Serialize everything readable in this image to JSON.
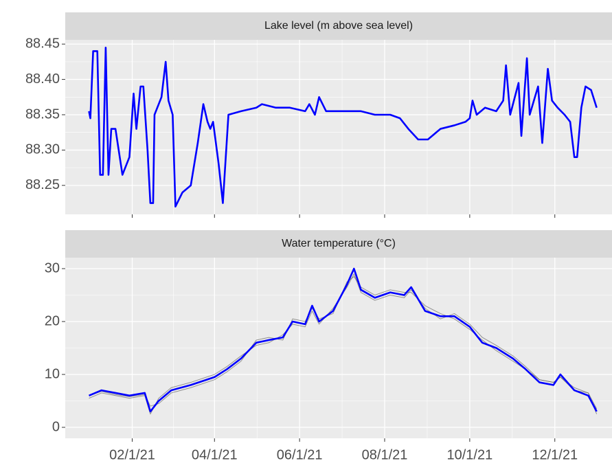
{
  "chart_data": [
    {
      "type": "line",
      "title": "Lake level (m above sea level)",
      "x": [
        "2021-01-01",
        "2021-01-02",
        "2021-01-04",
        "2021-01-07",
        "2021-01-09",
        "2021-01-11",
        "2021-01-13",
        "2021-01-15",
        "2021-01-17",
        "2021-01-20",
        "2021-01-25",
        "2021-01-30",
        "2021-02-02",
        "2021-02-04",
        "2021-02-07",
        "2021-02-09",
        "2021-02-12",
        "2021-02-14",
        "2021-02-16",
        "2021-02-17",
        "2021-02-22",
        "2021-02-25",
        "2021-02-27",
        "2021-03-02",
        "2021-03-04",
        "2021-03-09",
        "2021-03-15",
        "2021-03-20",
        "2021-03-24",
        "2021-03-27",
        "2021-03-29",
        "2021-03-31",
        "2021-04-04",
        "2021-04-07",
        "2021-04-11",
        "2021-04-20",
        "2021-05-01",
        "2021-05-05",
        "2021-05-15",
        "2021-05-25",
        "2021-06-05",
        "2021-06-08",
        "2021-06-12",
        "2021-06-15",
        "2021-06-20",
        "2021-07-01",
        "2021-07-15",
        "2021-07-25",
        "2021-08-05",
        "2021-08-12",
        "2021-08-18",
        "2021-08-25",
        "2021-09-01",
        "2021-09-10",
        "2021-09-20",
        "2021-09-28",
        "2021-10-01",
        "2021-10-03",
        "2021-10-06",
        "2021-10-12",
        "2021-10-20",
        "2021-10-25",
        "2021-10-27",
        "2021-10-30",
        "2021-11-05",
        "2021-11-07",
        "2021-11-11",
        "2021-11-13",
        "2021-11-19",
        "2021-11-22",
        "2021-11-26",
        "2021-11-29",
        "2021-12-03",
        "2021-12-08",
        "2021-12-12",
        "2021-12-15",
        "2021-12-17",
        "2021-12-20",
        "2021-12-23",
        "2021-12-27",
        "2021-12-31"
      ],
      "series": [
        {
          "color": "#0000ff",
          "values": [
            88.355,
            88.345,
            88.44,
            88.44,
            88.265,
            88.265,
            88.445,
            88.265,
            88.33,
            88.33,
            88.265,
            88.29,
            88.38,
            88.33,
            88.39,
            88.39,
            88.3,
            88.225,
            88.225,
            88.35,
            88.375,
            88.425,
            88.37,
            88.35,
            88.22,
            88.24,
            88.25,
            88.31,
            88.365,
            88.34,
            88.33,
            88.34,
            88.28,
            88.225,
            88.35,
            88.355,
            88.36,
            88.365,
            88.36,
            88.36,
            88.355,
            88.365,
            88.35,
            88.375,
            88.355,
            88.355,
            88.355,
            88.35,
            88.35,
            88.345,
            88.33,
            88.315,
            88.315,
            88.33,
            88.335,
            88.34,
            88.345,
            88.37,
            88.35,
            88.36,
            88.355,
            88.37,
            88.42,
            88.35,
            88.395,
            88.32,
            88.43,
            88.35,
            88.39,
            88.31,
            88.415,
            88.37,
            88.36,
            88.35,
            88.34,
            88.29,
            88.29,
            88.36,
            88.39,
            88.385,
            88.36
          ]
        }
      ],
      "xlim": [
        "2020-12-15",
        "2022-01-11"
      ],
      "xticks": [
        "2021-02-01",
        "2021-04-01",
        "2021-06-01",
        "2021-08-01",
        "2021-10-01",
        "2021-12-01"
      ],
      "ylim": [
        88.209,
        88.456
      ],
      "yticks": [
        {
          "value": 88.25,
          "label": "88.25"
        },
        {
          "value": 88.3,
          "label": "88.30"
        },
        {
          "value": 88.35,
          "label": "88.35"
        },
        {
          "value": 88.4,
          "label": "88.40"
        },
        {
          "value": 88.45,
          "label": "88.45"
        }
      ],
      "grid": true
    },
    {
      "type": "line",
      "title": "Water temperature (°C)",
      "x": [
        "2021-01-01",
        "2021-01-10",
        "2021-01-20",
        "2021-01-30",
        "2021-02-10",
        "2021-02-14",
        "2021-02-20",
        "2021-03-01",
        "2021-03-15",
        "2021-04-01",
        "2021-04-10",
        "2021-04-20",
        "2021-05-01",
        "2021-05-10",
        "2021-05-20",
        "2021-05-27",
        "2021-06-05",
        "2021-06-10",
        "2021-06-15",
        "2021-06-25",
        "2021-07-05",
        "2021-07-10",
        "2021-07-15",
        "2021-07-25",
        "2021-08-05",
        "2021-08-15",
        "2021-08-20",
        "2021-08-30",
        "2021-09-10",
        "2021-09-20",
        "2021-10-01",
        "2021-10-10",
        "2021-10-20",
        "2021-11-01",
        "2021-11-10",
        "2021-11-20",
        "2021-11-30",
        "2021-12-05",
        "2021-12-15",
        "2021-12-25",
        "2021-12-31"
      ],
      "series": [
        {
          "color": "#555555",
          "values": [
            5.5,
            6.5,
            6,
            5.5,
            6,
            2.5,
            5.5,
            7.5,
            8.5,
            10,
            11.5,
            13.5,
            15.5,
            16,
            17.5,
            19.5,
            19,
            22,
            19.5,
            22.5,
            26.5,
            29,
            25.5,
            24,
            25,
            24.5,
            26,
            22.5,
            20.5,
            21.5,
            19.5,
            17,
            15.5,
            13.5,
            11.5,
            9,
            8.5,
            9.5,
            7.5,
            6.5,
            2.5
          ]
        },
        {
          "color": "#555555",
          "values": [
            6,
            6.8,
            6.2,
            5.8,
            6.2,
            4,
            4.5,
            6.5,
            7.5,
            9,
            10.5,
            12.5,
            16.5,
            17,
            16.5,
            20.5,
            20,
            22.5,
            20.5,
            21.5,
            27.5,
            28.5,
            26.5,
            25,
            26,
            25.5,
            25.5,
            23,
            21.5,
            20.5,
            18.5,
            16.5,
            14.5,
            12.5,
            11,
            9,
            8.5,
            9.5,
            7,
            6.5,
            3.5
          ]
        },
        {
          "color": "#0000ff",
          "values": [
            6,
            7,
            6.5,
            6,
            6.5,
            3,
            5,
            7,
            8,
            9.5,
            11,
            13,
            16,
            16.5,
            17,
            20,
            19.5,
            23,
            20,
            22,
            27,
            30,
            26,
            24.5,
            25.5,
            25,
            26.5,
            22,
            21,
            21,
            19,
            16,
            15,
            13,
            11,
            8.5,
            8,
            10,
            7,
            6,
            3
          ]
        }
      ],
      "xlim": [
        "2020-12-15",
        "2022-01-11"
      ],
      "xticks": [
        {
          "value": "2021-02-01",
          "label": "02/1/21"
        },
        {
          "value": "2021-04-01",
          "label": "04/1/21"
        },
        {
          "value": "2021-06-01",
          "label": "06/1/21"
        },
        {
          "value": "2021-08-01",
          "label": "08/1/21"
        },
        {
          "value": "2021-10-01",
          "label": "10/1/21"
        },
        {
          "value": "2021-12-01",
          "label": "12/1/21"
        }
      ],
      "ylim": [
        -2.08,
        32.08
      ],
      "yticks": [
        0,
        10,
        20,
        30
      ],
      "grid": true
    }
  ]
}
